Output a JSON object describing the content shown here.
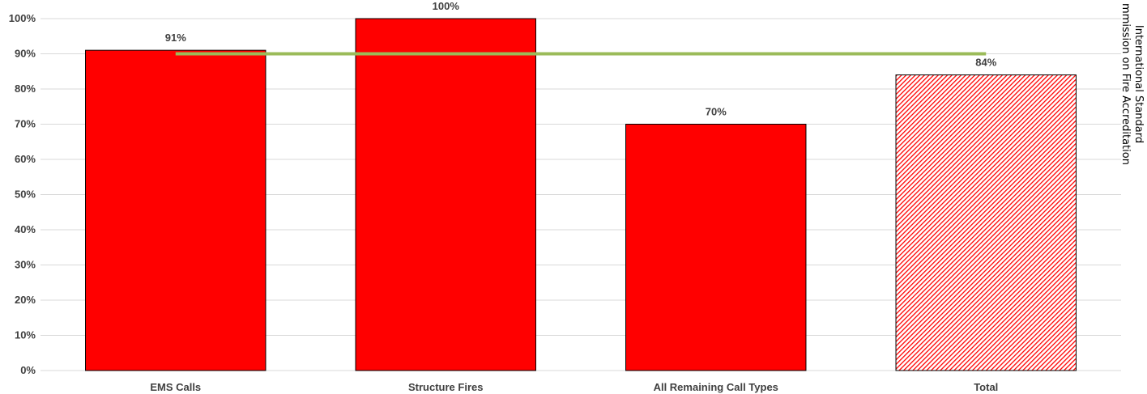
{
  "chart_data": {
    "type": "bar",
    "categories": [
      "EMS Calls",
      "Structure Fires",
      "All Remaining Call Types",
      "Total"
    ],
    "values": [
      91,
      100,
      70,
      84
    ],
    "data_labels": [
      "91%",
      "100%",
      "70%",
      "84%"
    ],
    "ylim": [
      0,
      100
    ],
    "y_ticks": [
      0,
      10,
      20,
      30,
      40,
      50,
      60,
      70,
      80,
      90,
      100
    ],
    "y_tick_labels": [
      "0%",
      "10%",
      "20%",
      "30%",
      "40%",
      "50%",
      "60%",
      "70%",
      "80%",
      "90%",
      "100%"
    ],
    "reference_line": {
      "value": 90
    },
    "side_label_lines": [
      "mmission  on Fire Accreditation",
      "International Standard"
    ],
    "grid": true,
    "colors": {
      "bar": "#ff0000",
      "bar_hatched": "#ff0000",
      "reference_line": "#9bbb59",
      "grid": "#d9d9d9"
    },
    "hatched_categories": [
      "Total"
    ]
  }
}
